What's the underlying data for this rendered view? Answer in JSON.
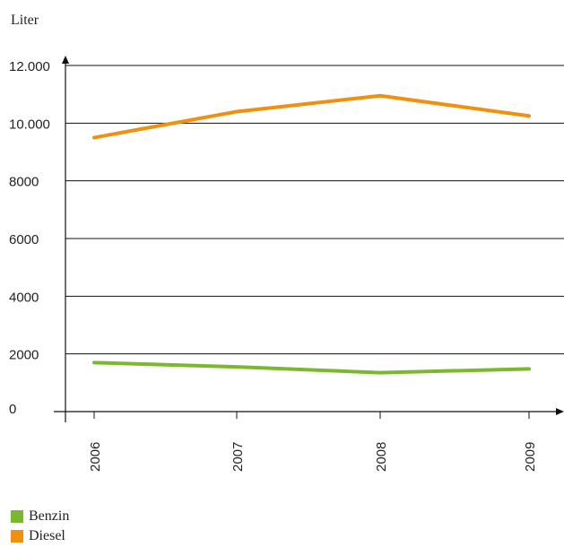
{
  "chart_data": {
    "type": "line",
    "ylabel": "Liter",
    "categories": [
      "2006",
      "2007",
      "2008",
      "2009"
    ],
    "ylim": [
      0,
      12000
    ],
    "yticks": [
      0,
      2000,
      4000,
      6000,
      8000,
      10000,
      12000
    ],
    "ytick_labels": [
      "0",
      "2000",
      "4000",
      "6000",
      "8000",
      "10.000",
      "12.000"
    ],
    "grid": true,
    "legend_position": "bottom-left",
    "series": [
      {
        "name": "Benzin",
        "color": "#7cb82f",
        "values": [
          1700,
          1550,
          1350,
          1480
        ]
      },
      {
        "name": "Diesel",
        "color": "#f0900e",
        "values": [
          9500,
          10400,
          10950,
          10250
        ]
      }
    ]
  }
}
